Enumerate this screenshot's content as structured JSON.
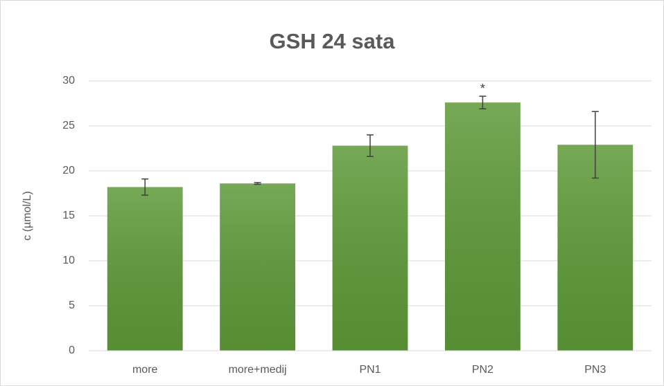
{
  "chart_data": {
    "type": "bar",
    "title": "GSH 24 sata",
    "y_label": "c (µmol/L)",
    "categories": [
      "more",
      "more+medij",
      "PN1",
      "PN2",
      "PN3"
    ],
    "values": [
      18.2,
      18.6,
      22.8,
      27.6,
      22.9
    ],
    "errors": [
      0.9,
      0.1,
      1.2,
      0.7,
      3.7
    ],
    "annotation": "*",
    "color": "#5e9a38",
    "ylim": [
      0,
      30
    ],
    "yticks": [
      0,
      5,
      10,
      15,
      20,
      25,
      30
    ],
    "grid": true
  }
}
